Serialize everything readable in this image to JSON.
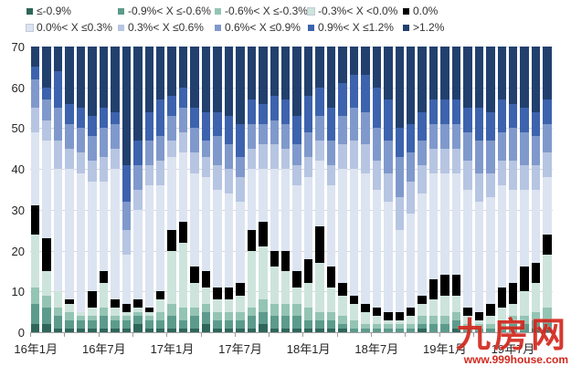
{
  "legend": {
    "items": [
      {
        "label": "≤-0.9%",
        "color": "#2e665a"
      },
      {
        "label": "-0.9%< X ≤-0.6%",
        "color": "#5c9b8c"
      },
      {
        "label": "-0.6%< X ≤-0.3%",
        "color": "#94c4b4"
      },
      {
        "label": "-0.3%< X <0.0%",
        "color": "#cde4dc"
      },
      {
        "label": "0.0%",
        "color": "#000000"
      },
      {
        "label": "0.0%< X ≤0.3%",
        "color": "#dce4f1"
      },
      {
        "label": "0.3%< X ≤0.6%",
        "color": "#b6c5e2"
      },
      {
        "label": "0.6%< X ≤0.9%",
        "color": "#8099cc"
      },
      {
        "label": "0.9%< X ≤1.2%",
        "color": "#3d63ae"
      },
      {
        "label": ">1.2%",
        "color": "#22406e"
      }
    ]
  },
  "chart_data": {
    "type": "bar",
    "stacked": true,
    "grid": true,
    "legend_position": "top",
    "ylim": [
      0,
      70
    ],
    "y_ticks": [
      0,
      10,
      20,
      30,
      40,
      50,
      60,
      70
    ],
    "x_tick_labels": [
      "16年1月",
      "16年7月",
      "17年1月",
      "17年7月",
      "18年1月",
      "18年7月",
      "19年1月",
      "19年7月"
    ],
    "x_tick_indices": [
      0,
      6,
      12,
      18,
      24,
      30,
      36,
      42
    ],
    "minor_tick_every": 3,
    "categories": [
      "16年1月",
      "16年2月",
      "16年3月",
      "16年4月",
      "16年5月",
      "16年6月",
      "16年7月",
      "16年8月",
      "16年9月",
      "16年10月",
      "16年11月",
      "16年12月",
      "17年1月",
      "17年2月",
      "17年3月",
      "17年4月",
      "17年5月",
      "17年6月",
      "17年7月",
      "17年8月",
      "17年9月",
      "17年10月",
      "17年11月",
      "17年12月",
      "18年1月",
      "18年2月",
      "18年3月",
      "18年4月",
      "18年5月",
      "18年6月",
      "18年7月",
      "18年8月",
      "18年9月",
      "18年10月",
      "18年11月",
      "18年12月",
      "19年1月",
      "19年2月",
      "19年3月",
      "19年4月",
      "19年5月",
      "19年6月",
      "19年7月",
      "19年8月",
      "19年9月",
      "19年10月"
    ],
    "series": [
      {
        "name": "≤-0.9%",
        "color": "#2e665a",
        "values": [
          2,
          2,
          1,
          1,
          1,
          1,
          1,
          1,
          1,
          2,
          1,
          1,
          1,
          1,
          1,
          2,
          1,
          1,
          1,
          1,
          2,
          1,
          1,
          1,
          1,
          1,
          1,
          1,
          0,
          0,
          0,
          0,
          0,
          0,
          1,
          0,
          0,
          1,
          0,
          0,
          0,
          0,
          0,
          0,
          1,
          1
        ]
      },
      {
        "name": "-0.9%< X ≤-0.6%",
        "color": "#5c9b8c",
        "values": [
          5,
          4,
          3,
          2,
          2,
          2,
          3,
          2,
          2,
          2,
          2,
          2,
          3,
          2,
          3,
          3,
          2,
          2,
          2,
          3,
          3,
          3,
          3,
          3,
          2,
          2,
          2,
          1,
          1,
          1,
          1,
          1,
          1,
          1,
          1,
          2,
          2,
          2,
          1,
          1,
          1,
          1,
          2,
          2,
          2,
          2
        ]
      },
      {
        "name": "-0.6%< X ≤-0.3%",
        "color": "#94c4b4",
        "values": [
          4,
          3,
          2,
          2,
          1,
          1,
          2,
          1,
          1,
          1,
          1,
          2,
          3,
          3,
          2,
          2,
          2,
          2,
          2,
          2,
          3,
          3,
          3,
          3,
          3,
          2,
          2,
          2,
          2,
          1,
          1,
          1,
          1,
          1,
          2,
          2,
          2,
          2,
          1,
          1,
          1,
          2,
          2,
          2,
          2,
          3
        ]
      },
      {
        "name": "-0.3%< X <0.0%",
        "color": "#cde4dc",
        "values": [
          13,
          6,
          4,
          2,
          1,
          2,
          6,
          2,
          1,
          1,
          1,
          3,
          13,
          16,
          6,
          4,
          3,
          3,
          4,
          14,
          13,
          9,
          8,
          4,
          6,
          12,
          6,
          5,
          4,
          3,
          2,
          1,
          1,
          2,
          3,
          4,
          5,
          4,
          2,
          1,
          2,
          3,
          3,
          6,
          7,
          13
        ]
      },
      {
        "name": "0.0%",
        "color": "#000000",
        "values": [
          7,
          8,
          0,
          1,
          0,
          4,
          3,
          2,
          2,
          2,
          1,
          2,
          5,
          5,
          4,
          4,
          3,
          3,
          3,
          5,
          6,
          4,
          5,
          4,
          6,
          9,
          5,
          3,
          2,
          2,
          2,
          2,
          2,
          2,
          2,
          5,
          5,
          5,
          2,
          2,
          3,
          5,
          5,
          6,
          5,
          5
        ]
      },
      {
        "name": "0.0%< X ≤0.3%",
        "color": "#dce4f1",
        "values": [
          18,
          24,
          30,
          32,
          34,
          27,
          22,
          32,
          12,
          22,
          30,
          26,
          18,
          17,
          23,
          23,
          24,
          23,
          20,
          15,
          13,
          20,
          20,
          21,
          20,
          16,
          20,
          28,
          31,
          32,
          29,
          27,
          20,
          23,
          25,
          26,
          25,
          25,
          29,
          27,
          26,
          25,
          23,
          19,
          18,
          14
        ]
      },
      {
        "name": "0.3%< X ≤0.6%",
        "color": "#b6c5e2",
        "values": [
          6,
          5,
          7,
          5,
          5,
          5,
          6,
          5,
          6,
          5,
          5,
          6,
          4,
          5,
          5,
          5,
          6,
          6,
          6,
          5,
          6,
          6,
          5,
          5,
          5,
          5,
          5,
          6,
          7,
          7,
          7,
          7,
          8,
          8,
          7,
          6,
          6,
          6,
          7,
          7,
          6,
          6,
          7,
          6,
          6,
          6
        ]
      },
      {
        "name": "0.6%< X ≤0.9%",
        "color": "#8099cc",
        "values": [
          7,
          5,
          8,
          6,
          6,
          6,
          7,
          6,
          7,
          6,
          6,
          6,
          6,
          6,
          6,
          4,
          7,
          6,
          5,
          6,
          5,
          6,
          6,
          5,
          6,
          6,
          6,
          7,
          8,
          8,
          8,
          8,
          10,
          7,
          6,
          6,
          6,
          6,
          7,
          8,
          8,
          7,
          8,
          8,
          7,
          7
        ]
      },
      {
        "name": "0.9%< X ≤1.2%",
        "color": "#3d63ae",
        "values": [
          3,
          3,
          9,
          5,
          5,
          5,
          5,
          3,
          9,
          6,
          7,
          9,
          5,
          5,
          5,
          7,
          6,
          7,
          8,
          6,
          5,
          6,
          6,
          7,
          9,
          7,
          8,
          8,
          8,
          9,
          10,
          10,
          7,
          7,
          7,
          6,
          6,
          6,
          6,
          8,
          7,
          8,
          6,
          6,
          6,
          6
        ]
      },
      {
        "name": ">1.2%",
        "color": "#22406e",
        "values": [
          5,
          10,
          6,
          14,
          15,
          17,
          15,
          16,
          29,
          23,
          16,
          13,
          12,
          10,
          15,
          16,
          16,
          17,
          19,
          13,
          14,
          12,
          13,
          17,
          12,
          10,
          15,
          9,
          7,
          7,
          10,
          13,
          20,
          19,
          16,
          13,
          13,
          13,
          15,
          15,
          16,
          13,
          14,
          15,
          16,
          13
        ]
      }
    ]
  },
  "watermark": {
    "text": "九房网",
    "url": "www.999house.com"
  }
}
